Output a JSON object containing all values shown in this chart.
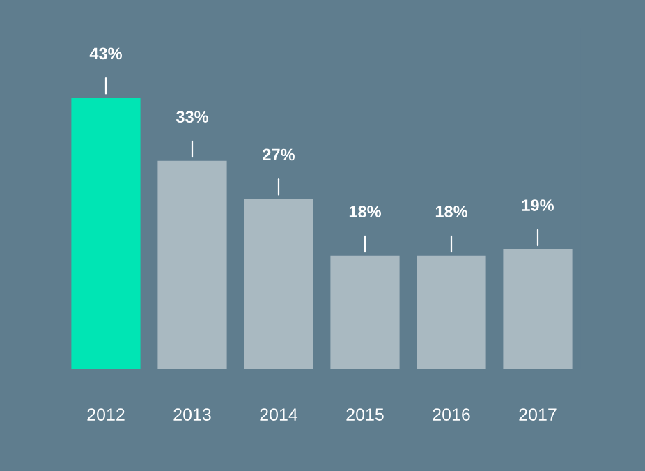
{
  "chart_data": {
    "type": "bar",
    "categories": [
      "2012",
      "2013",
      "2014",
      "2015",
      "2016",
      "2017"
    ],
    "values": [
      43,
      33,
      27,
      18,
      18,
      19
    ],
    "colors": [
      "#00e5b4",
      "#a9b9c1",
      "#a9b9c1",
      "#a9b9c1",
      "#a9b9c1",
      "#a9b9c1"
    ],
    "value_labels": [
      "43%",
      "33%",
      "27%",
      "18%",
      "18%",
      "19%"
    ],
    "grid": false,
    "legend": false
  }
}
